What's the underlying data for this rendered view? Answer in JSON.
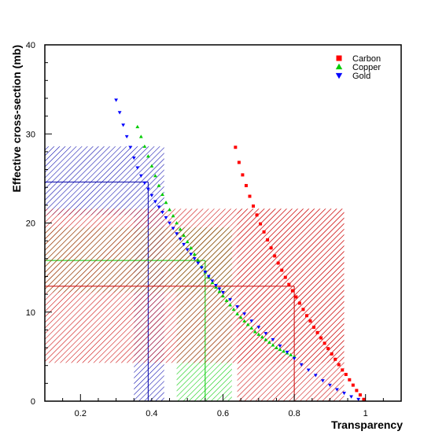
{
  "chart_data": {
    "type": "scatter",
    "title": "",
    "xlabel": "Transparency",
    "ylabel": "Effective cross-section (mb)",
    "xlim": [
      0.1,
      1.1
    ],
    "ylim": [
      0,
      40
    ],
    "x_ticks": [
      0.2,
      0.4,
      0.6,
      0.8,
      1
    ],
    "x_tick_labels": [
      "0.2",
      "0.4",
      "0.6",
      "0.8",
      "1"
    ],
    "y_ticks": [
      0,
      10,
      20,
      30,
      40
    ],
    "y_tick_labels": [
      "0",
      "10",
      "20",
      "30",
      "40"
    ],
    "grid": false,
    "legend_position": "top-right",
    "series": [
      {
        "name": "Carbon",
        "marker": "square",
        "color": "#ff0000",
        "x": [
          0.635,
          0.645,
          0.655,
          0.665,
          0.675,
          0.685,
          0.695,
          0.705,
          0.715,
          0.725,
          0.735,
          0.745,
          0.755,
          0.765,
          0.775,
          0.785,
          0.795,
          0.805,
          0.815,
          0.825,
          0.835,
          0.845,
          0.855,
          0.865,
          0.875,
          0.885,
          0.895,
          0.905,
          0.915,
          0.925,
          0.935,
          0.945,
          0.955,
          0.965,
          0.975,
          0.985,
          0.995
        ],
        "y": [
          28.5,
          26.8,
          25.4,
          24.2,
          23.0,
          21.9,
          20.9,
          19.9,
          19.0,
          18.1,
          17.2,
          16.3,
          15.5,
          14.7,
          13.9,
          13.1,
          12.4,
          11.7,
          11.0,
          10.3,
          9.6,
          9.0,
          8.3,
          7.7,
          7.1,
          6.5,
          5.9,
          5.3,
          4.7,
          4.1,
          3.5,
          3.0,
          2.4,
          1.8,
          1.2,
          0.7,
          0.2
        ]
      },
      {
        "name": "Copper",
        "marker": "triangle-up",
        "color": "#00cc00",
        "x": [
          0.36,
          0.37,
          0.38,
          0.39,
          0.4,
          0.41,
          0.42,
          0.43,
          0.44,
          0.45,
          0.46,
          0.47,
          0.48,
          0.49,
          0.5,
          0.51,
          0.52,
          0.53,
          0.54,
          0.55,
          0.56,
          0.57,
          0.58,
          0.59,
          0.6,
          0.61,
          0.62,
          0.63,
          0.64,
          0.65,
          0.66,
          0.67,
          0.68,
          0.69,
          0.7,
          0.71,
          0.72,
          0.73,
          0.74,
          0.75,
          0.76,
          0.77,
          0.78,
          0.79,
          0.8
        ],
        "y": [
          30.8,
          29.7,
          28.6,
          27.5,
          26.4,
          25.3,
          24.2,
          23.2,
          22.3,
          21.5,
          20.8,
          20.0,
          19.3,
          18.6,
          17.9,
          17.2,
          16.5,
          15.8,
          15.1,
          14.5,
          13.9,
          13.3,
          12.8,
          12.3,
          11.8,
          11.3,
          10.8,
          10.3,
          9.8,
          9.4,
          9.0,
          8.6,
          8.2,
          7.8,
          7.5,
          7.2,
          6.9,
          6.6,
          6.3,
          6.0,
          5.8,
          5.6,
          5.4,
          5.2,
          5.0
        ]
      },
      {
        "name": "Gold",
        "marker": "triangle-down",
        "color": "#0000ff",
        "x": [
          0.3,
          0.31,
          0.32,
          0.33,
          0.34,
          0.35,
          0.36,
          0.37,
          0.38,
          0.39,
          0.4,
          0.41,
          0.42,
          0.43,
          0.44,
          0.45,
          0.46,
          0.47,
          0.48,
          0.49,
          0.5,
          0.51,
          0.52,
          0.53,
          0.54,
          0.55,
          0.56,
          0.57,
          0.58,
          0.59,
          0.6,
          0.62,
          0.64,
          0.66,
          0.68,
          0.7,
          0.72,
          0.74,
          0.76,
          0.78,
          0.8,
          0.82,
          0.84,
          0.86,
          0.88,
          0.9,
          0.92,
          0.94,
          0.96,
          0.98
        ],
        "y": [
          33.8,
          32.4,
          31.0,
          29.7,
          28.5,
          27.3,
          26.2,
          25.3,
          24.5,
          23.8,
          23.1,
          22.4,
          21.8,
          21.2,
          20.6,
          20.0,
          19.4,
          18.8,
          18.2,
          17.6,
          17.0,
          16.5,
          16.0,
          15.5,
          15.0,
          14.5,
          14.0,
          13.5,
          13.0,
          12.6,
          12.2,
          11.4,
          10.6,
          9.8,
          9.0,
          8.3,
          7.6,
          6.9,
          6.2,
          5.5,
          4.8,
          4.1,
          3.5,
          2.9,
          2.3,
          1.8,
          1.3,
          0.9,
          0.5,
          0.2
        ]
      }
    ],
    "bands": [
      {
        "series": "Gold",
        "color": "#0000aa",
        "horizontal": {
          "x": [
            0.1,
            0.435
          ],
          "y": [
            20.9,
            28.6
          ]
        },
        "vertical": {
          "x": [
            0.35,
            0.435
          ],
          "y": [
            0,
            20.9
          ]
        },
        "marker_lines": {
          "x": 0.39,
          "y": 24.6
        }
      },
      {
        "series": "Copper",
        "color": "#00cc00",
        "horizontal": {
          "x": [
            0.1,
            0.625
          ],
          "y": [
            12.2,
            19.5
          ]
        },
        "vertical": {
          "x": [
            0.47,
            0.625
          ],
          "y": [
            0,
            19.5
          ]
        },
        "marker_lines": {
          "x": 0.55,
          "y": 15.8
        }
      },
      {
        "series": "Carbon",
        "color": "#cc0000",
        "horizontal": {
          "x": [
            0.1,
            0.94
          ],
          "y": [
            4.3,
            21.6
          ]
        },
        "vertical": {
          "x": [
            0.64,
            0.94
          ],
          "y": [
            0,
            21.6
          ]
        },
        "marker_lines": {
          "x": 0.8,
          "y": 12.9
        }
      }
    ]
  }
}
